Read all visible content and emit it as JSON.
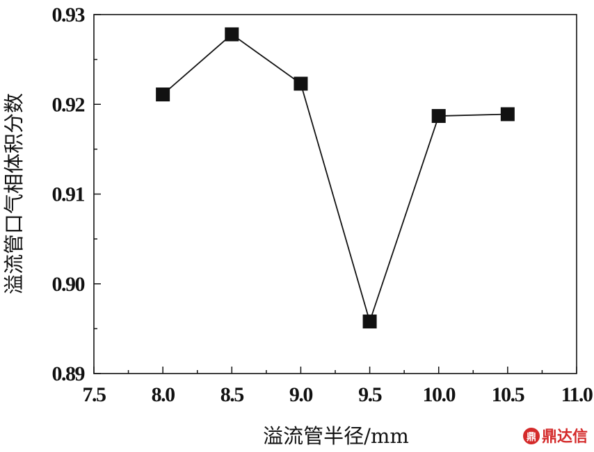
{
  "chart_data": {
    "type": "line",
    "x": [
      8.0,
      8.5,
      9.0,
      9.5,
      10.0,
      10.5
    ],
    "series": [
      {
        "values": [
          0.9211,
          0.9278,
          0.9223,
          0.8958,
          0.9187,
          0.9189
        ]
      }
    ],
    "xlabel": "溢流管半径/mm",
    "ylabel": "溢流管口气相体积分数",
    "xlim": [
      7.5,
      11.0
    ],
    "ylim": [
      0.89,
      0.93
    ],
    "x_ticks": [
      "7.5",
      "8.0",
      "8.5",
      "9.0",
      "9.5",
      "10.0",
      "10.5",
      "11.0"
    ],
    "y_ticks": [
      "0.89",
      "0.90",
      "0.91",
      "0.92",
      "0.93"
    ],
    "marker": "square",
    "grid": false,
    "line_color": "#111111",
    "marker_color": "#111111"
  },
  "watermark": {
    "logo_text": "鼎",
    "text": "鼎达信",
    "color": "#d42a2a"
  }
}
